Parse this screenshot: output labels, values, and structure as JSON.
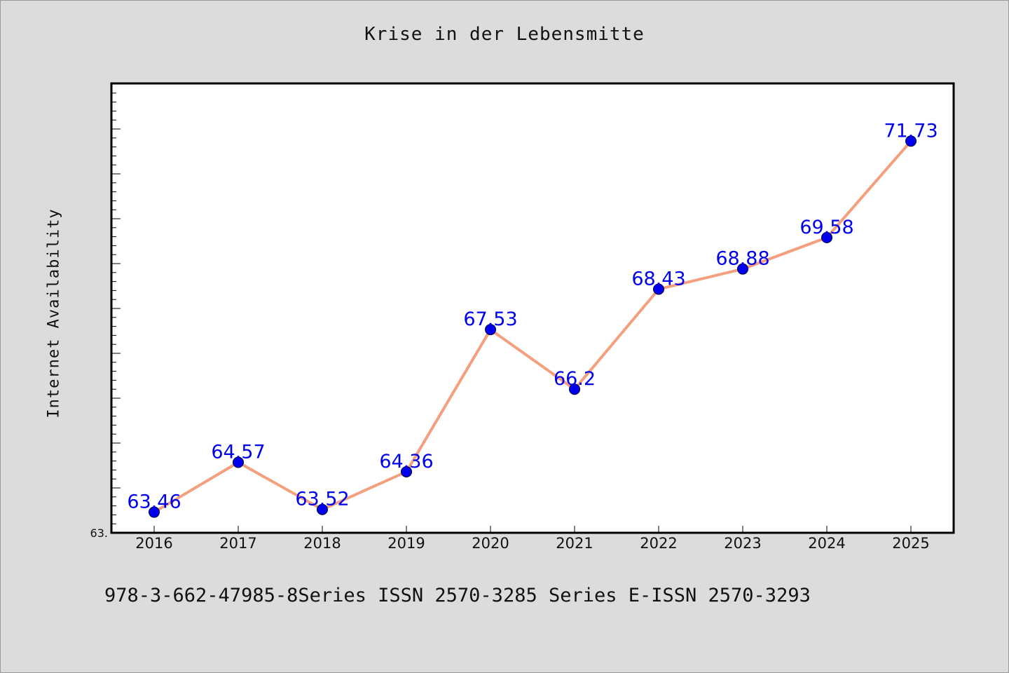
{
  "chart_data": {
    "type": "line",
    "title": "Krise in der Lebensmitte",
    "xlabel": "",
    "ylabel": "Internet Availability",
    "categories": [
      "2016",
      "2017",
      "2018",
      "2019",
      "2020",
      "2021",
      "2022",
      "2023",
      "2024",
      "2025"
    ],
    "series": [
      {
        "values": [
          63.46,
          64.57,
          63.52,
          64.36,
          67.53,
          66.2,
          68.43,
          68.88,
          69.58,
          71.73
        ],
        "data_labels": [
          "63.46",
          "64.57",
          "63.52",
          "64.36",
          "67.53",
          "66.2",
          "68.43",
          "68.88",
          "69.58",
          "71.73"
        ]
      }
    ],
    "ylim": [
      63.0,
      73.0
    ],
    "y_tick_label_visible": "63.",
    "grid": false,
    "legend": "none",
    "colors": {
      "line": "#f4a07f",
      "marker": "#0000ee",
      "data_label": "#0000ee",
      "plot_background": "#ffffff",
      "figure_background": "#dcdcdc"
    }
  },
  "footer_text": "978-3-662-47985-8Series ISSN 2570-3285 Series E-ISSN 2570-3293"
}
